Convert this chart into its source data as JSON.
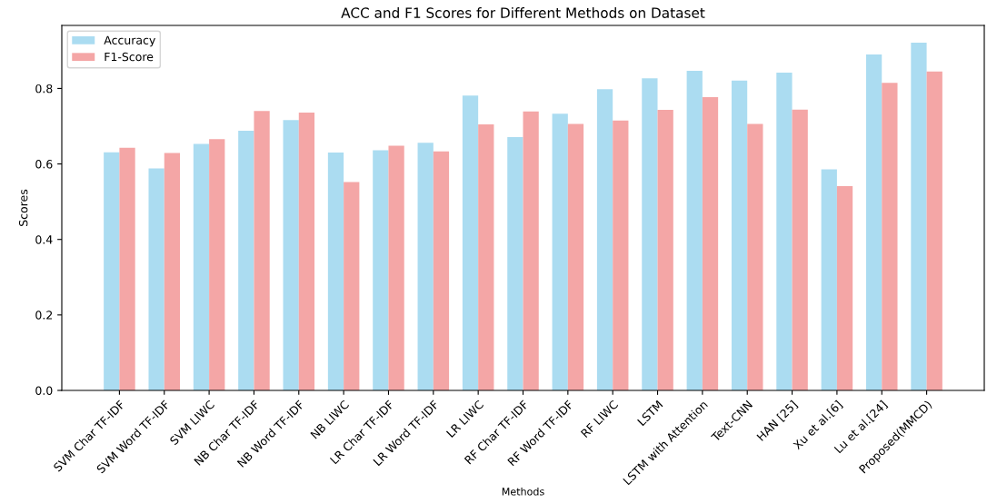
{
  "chart_data": {
    "type": "bar",
    "title": "ACC and F1 Scores for Different Methods on Dataset",
    "xlabel": "Methods",
    "ylabel": "Scores",
    "categories": [
      "SVM Char TF-IDF",
      "SVM Word TF-IDF",
      "SVM LIWC",
      "NB Char TF-IDF",
      "NB Word TF-IDF",
      "NB LIWC",
      "LR Char TF-IDF",
      "LR Word TF-IDF",
      "LR LIWC",
      "RF Char TF-IDF",
      "RF Word TF-IDF",
      "RF LIWC",
      "LSTM",
      "LSTM with Attention",
      "Text-CNN",
      "HAN [25]",
      "Xu et al.[6]",
      "Lu et al.[24]",
      "Proposed(MMCD)"
    ],
    "series": [
      {
        "name": "Accuracy",
        "color": "#abdcf1",
        "values": [
          0.631,
          0.588,
          0.653,
          0.688,
          0.716,
          0.63,
          0.636,
          0.656,
          0.781,
          0.671,
          0.733,
          0.798,
          0.827,
          0.847,
          0.821,
          0.842,
          0.586,
          0.89,
          0.921
        ]
      },
      {
        "name": "F1-Score",
        "color": "#f4a6a6",
        "values": [
          0.643,
          0.629,
          0.666,
          0.74,
          0.736,
          0.552,
          0.648,
          0.633,
          0.705,
          0.739,
          0.706,
          0.715,
          0.743,
          0.777,
          0.706,
          0.744,
          0.541,
          0.815,
          0.845
        ]
      }
    ],
    "ylim": [
      0,
      0.967
    ],
    "yticks": [
      {
        "value": 0,
        "label": "0.0"
      },
      {
        "value": 0.2,
        "label": "0.2"
      },
      {
        "value": 0.4,
        "label": "0.4"
      },
      {
        "value": 0.6,
        "label": "0.6"
      },
      {
        "value": 0.8,
        "label": "0.8"
      }
    ],
    "legend": "top left",
    "grid": false
  }
}
